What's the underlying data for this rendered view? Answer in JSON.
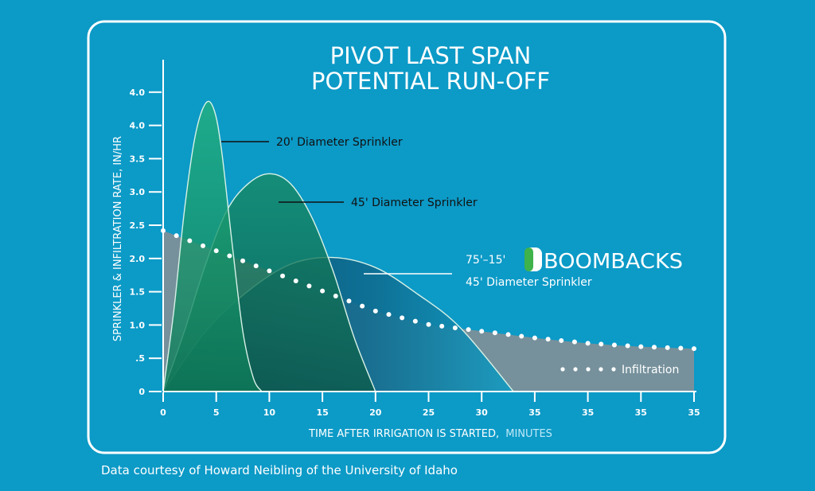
{
  "chart_data": {
    "type": "area",
    "title_line1": "PIVOT LAST SPAN",
    "title_line2": "POTENTIAL RUN-OFF",
    "xlabel_main": "TIME AFTER IRRIGATION IS STARTED,",
    "xlabel_unit": "MINUTES",
    "ylabel": "SPRINKLER & INFILTRATION RATE, IN/HR",
    "x_ticks": [
      "0",
      "5",
      "10",
      "15",
      "20",
      "25",
      "30",
      "35",
      "35",
      "35",
      "35"
    ],
    "y_ticks": [
      "0",
      ".5",
      "1.0",
      "1.5",
      "2.0",
      "2.5",
      "3.0",
      "3.5",
      "4.0",
      "4.0"
    ],
    "xlim": [
      0,
      50
    ],
    "ylim": [
      0,
      4.5
    ],
    "series": [
      {
        "name": "20' Diameter Sprinkler",
        "color": "#1fa777",
        "x": [
          0,
          1,
          2,
          3,
          4,
          4.8,
          5.5,
          6.5,
          7.5,
          8.5,
          9.3
        ],
        "y": [
          0,
          1.2,
          2.7,
          3.8,
          4.3,
          4.2,
          3.6,
          2.2,
          0.9,
          0.2,
          0
        ]
      },
      {
        "name": "45' Diameter Sprinkler",
        "color": "#137a5a",
        "x": [
          0,
          2,
          4,
          6,
          8,
          10,
          12,
          14,
          16,
          18,
          20
        ],
        "y": [
          0,
          0.9,
          1.9,
          2.7,
          3.1,
          3.25,
          3.1,
          2.6,
          1.8,
          0.8,
          0
        ]
      },
      {
        "name": "75'–15' BOOMBACKS 45' Diameter Sprinkler",
        "color": "#0f6a8e",
        "x": [
          0,
          4,
          8,
          12,
          16,
          20,
          24,
          28,
          33
        ],
        "y": [
          0,
          0.9,
          1.5,
          1.9,
          2.0,
          1.85,
          1.45,
          0.95,
          0
        ]
      },
      {
        "name": "Infiltration",
        "color": "#ffffff",
        "x": [
          0,
          5,
          10,
          15,
          20,
          25,
          30,
          35,
          40,
          45,
          50
        ],
        "y": [
          2.4,
          2.1,
          1.8,
          1.5,
          1.2,
          1.0,
          0.9,
          0.8,
          0.72,
          0.67,
          0.64
        ]
      }
    ],
    "annotations": {
      "s20": "20' Diameter Sprinkler",
      "s45": "45' Diameter Sprinkler",
      "boom_prefix": "75'–15'",
      "boom_brand": "BOOMBACKS",
      "boom_line2": "45' Diameter Sprinkler",
      "infiltration": "Infiltration"
    },
    "grid": false,
    "legend": "inline labels"
  },
  "credit": "Data courtesy of Howard Neibling of the University of Idaho"
}
